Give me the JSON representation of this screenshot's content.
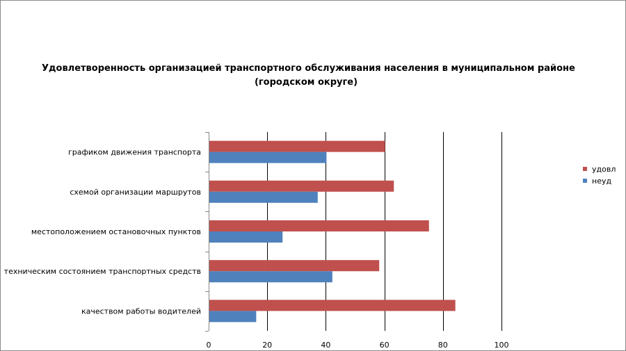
{
  "chart_data": {
    "type": "bar",
    "orientation": "horizontal",
    "title_line1": "Удовлетворенность организацией транспортного обслуживания населения в муниципальном районе",
    "title_line2": "(городском округе)",
    "categories": [
      "графиком движения транспорта",
      "схемой организации маршрутов",
      "местоположением остановочных пунктов",
      "техническим состоянием транспортных средств",
      "качеством работы водителей"
    ],
    "series": [
      {
        "name": "удовл",
        "color": "#C0504D",
        "values": [
          60,
          63,
          75,
          58,
          84
        ]
      },
      {
        "name": "неуд",
        "color": "#4F81BD",
        "values": [
          40,
          37,
          25,
          42,
          16
        ]
      }
    ],
    "xlim": [
      0,
      100
    ],
    "xticks": [
      0,
      20,
      40,
      60,
      80,
      100
    ],
    "grid": true,
    "legend_position": "right"
  }
}
